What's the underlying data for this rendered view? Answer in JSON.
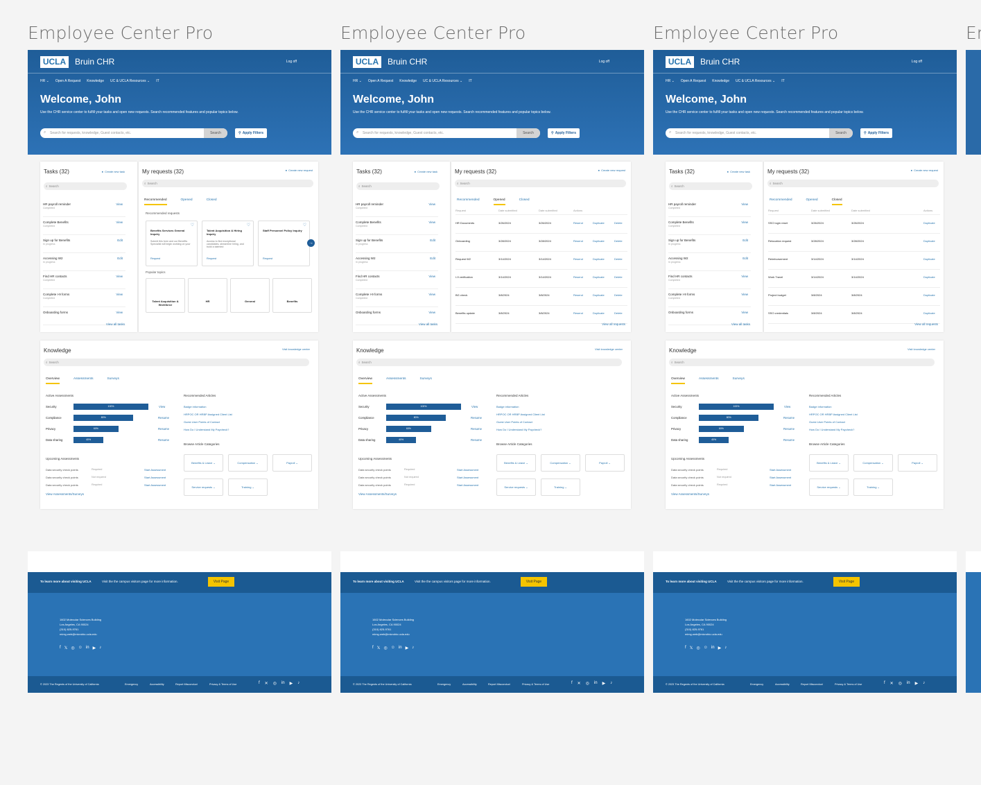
{
  "frame_title": "Employee Center Pro",
  "header": {
    "logo": "UCLA",
    "brand": "Bruin CHR",
    "logoff": "Log off",
    "nav": [
      "HR ⌄",
      "Open A Request",
      "Knowledge",
      "UC & UCLA Resources ⌄",
      "IT"
    ],
    "welcome": "Welcome, John",
    "intro": "Use the CHR service center to fulfill your tasks and open new requests. Search recommended features and popular topics below.",
    "search_placeholder": "Search for requests, knowledge, Guest contacts, etc.",
    "search_button": "Search",
    "filter_button": "Apply Filters"
  },
  "tasks": {
    "title": "Tasks (32)",
    "create": "Create new task",
    "search": "Search",
    "items": [
      {
        "name": "HR payroll reminder",
        "status": "Completed",
        "action": "View"
      },
      {
        "name": "Complete Benefits",
        "status": "Completed",
        "action": "View"
      },
      {
        "name": "Sign up for Benefits",
        "status": "In progress",
        "action": "Edit"
      },
      {
        "name": "Accessing W2",
        "status": "In progress",
        "action": "Edit"
      },
      {
        "name": "Find HR contacts",
        "status": "Completed",
        "action": "View"
      },
      {
        "name": "Complete I-9 forms",
        "status": "Completed",
        "action": "View"
      },
      {
        "name": "Onboarding forms",
        "status": "",
        "action": "View"
      }
    ],
    "view_all": "View all tasks"
  },
  "requests": {
    "title": "My requests (32)",
    "create": "Create new request",
    "search": "Search",
    "tabs": [
      "Recommended",
      "Opened",
      "Closed"
    ],
    "recommended_label": "Recommended requests",
    "rec_cards": [
      {
        "title": "Benefits Services General Inquiry",
        "desc": "Submit this form and our Benefits Specialist will begin working on your",
        "link": "Request"
      },
      {
        "title": "Talent Acquisition & Hiring Inquiry",
        "desc": "Access to find exceptional candidates, streamline hiring, and build a talented",
        "link": "Request"
      },
      {
        "title": "Staff Personnel Policy Inquiry",
        "desc": "",
        "link": "Request"
      }
    ],
    "popular_label": "Popular topics",
    "topics": [
      "Talent Acquisition & Workforce",
      "HR",
      "General",
      "Benefits"
    ],
    "columns_open": [
      "Request",
      "Date submitted",
      "Date submitted",
      "Actions"
    ],
    "opened_rows": [
      {
        "name": "HR Documents",
        "d1": "3/26/2024",
        "d2": "3/26/2024"
      },
      {
        "name": "Onboarding",
        "d1": "3/28/2024",
        "d2": "3/28/2024"
      },
      {
        "name": "Request W2",
        "d1": "3/14/2024",
        "d2": "3/14/2024"
      },
      {
        "name": "I-9 verification",
        "d1": "3/14/2024",
        "d2": "3/14/2024"
      },
      {
        "name": "BG check",
        "d1": "3/8/2024",
        "d2": "3/8/2024"
      },
      {
        "name": "Benefits update",
        "d1": "3/8/2024",
        "d2": "3/8/2024"
      }
    ],
    "opened_actions": [
      "Resend",
      "Duplicate",
      "Delete"
    ],
    "closed_rows": [
      {
        "name": "SSO login reset",
        "d1": "3/26/2024",
        "d2": "3/26/2024"
      },
      {
        "name": "Relocation request",
        "d1": "3/28/2024",
        "d2": "3/28/2024"
      },
      {
        "name": "Reimbursement",
        "d1": "3/14/2024",
        "d2": "3/14/2024"
      },
      {
        "name": "Work Travel",
        "d1": "3/14/2024",
        "d2": "3/14/2024"
      },
      {
        "name": "Project budget",
        "d1": "3/8/2024",
        "d2": "3/8/2024"
      },
      {
        "name": "SSO credentials",
        "d1": "3/8/2024",
        "d2": "3/8/2024"
      }
    ],
    "closed_action": "Duplicate",
    "view_all": "View all requests"
  },
  "knowledge": {
    "title": "Knowledge",
    "visit": "Visit knowledge center",
    "search": "Search",
    "tabs": [
      "Overview",
      "Assessments",
      "Surveys"
    ],
    "active_label": "Active Assessments",
    "assessments": [
      {
        "name": "Security",
        "percent": 100,
        "label": "100%",
        "action": "View"
      },
      {
        "name": "Compliance",
        "percent": 80,
        "label": "80%",
        "action": "Resume"
      },
      {
        "name": "Privacy",
        "percent": 60,
        "label": "60%",
        "action": "Resume"
      },
      {
        "name": "Data sharing",
        "percent": 40,
        "label": "40%",
        "action": "Resume"
      }
    ],
    "upcoming_label": "Upcoming Assessments",
    "upcoming": [
      {
        "name": "Data security check points",
        "status": "Required",
        "action": "Start Assessment"
      },
      {
        "name": "Data security check points",
        "status": "Not required",
        "action": "Start Assessment"
      },
      {
        "name": "Data security check points",
        "status": "Required",
        "action": "Start Assessment"
      }
    ],
    "view_assess": "View Assessments/Surveys",
    "articles_label": "Recommended Articles",
    "articles": [
      "Badge information",
      "HRPOC OR HRBP Assigned Client List",
      "Guest User Points of Contact",
      "How Do I Understand My Paycheck?"
    ],
    "categories_label": "Browse Article Categories",
    "categories": [
      "Benefits & Leave ⌄",
      "Compensation ⌄",
      "Payroll ⌄",
      "Service requests ⌄",
      "Training ⌄"
    ]
  },
  "footer": {
    "cta": "To learn more about visiting UCLA",
    "cta_sub": "Visit the the campus visitors page for more information.",
    "visit": "Visit Page",
    "address": [
      "1602 Molecular Sciences Building",
      "Los Angeles, CA 90024",
      "(310) 825-9761",
      "mimg.web@microbio.ucla.edu"
    ],
    "copyright": "© 2023 The Regents of the University of California",
    "links": [
      "Emergency",
      "Accessibility",
      "Report Misconduct",
      "Privacy & Terms of Use"
    ]
  },
  "partial_title": "Em"
}
